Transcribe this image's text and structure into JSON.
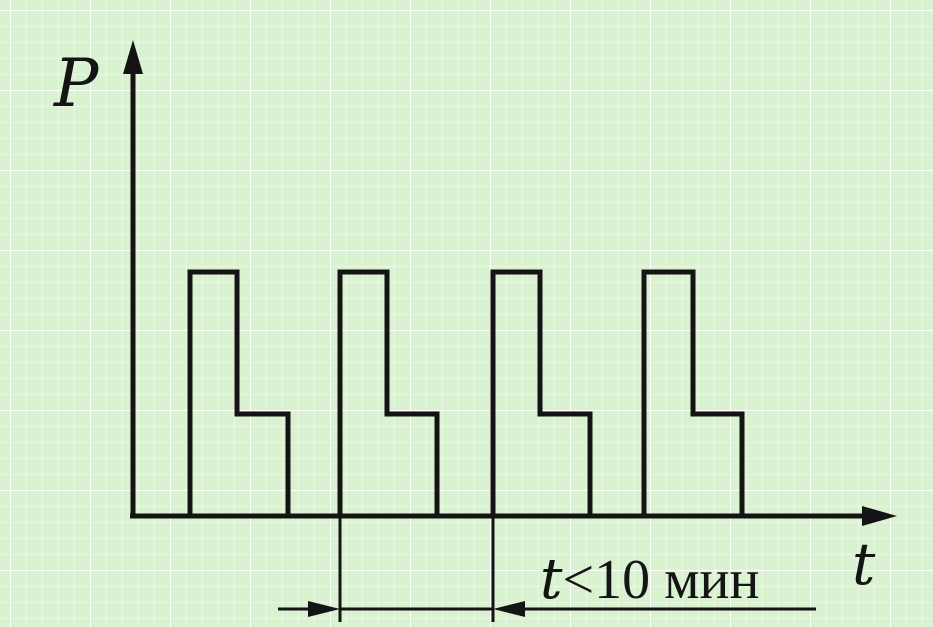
{
  "colors": {
    "background": "#d9f2cf",
    "grid_minor": "#f6fcf2",
    "grid_major": "#ffffff",
    "line": "#141414"
  },
  "axes": {
    "y_label": "P",
    "x_label": "t"
  },
  "period": {
    "variable": "t",
    "relation": "<10 мин"
  }
}
